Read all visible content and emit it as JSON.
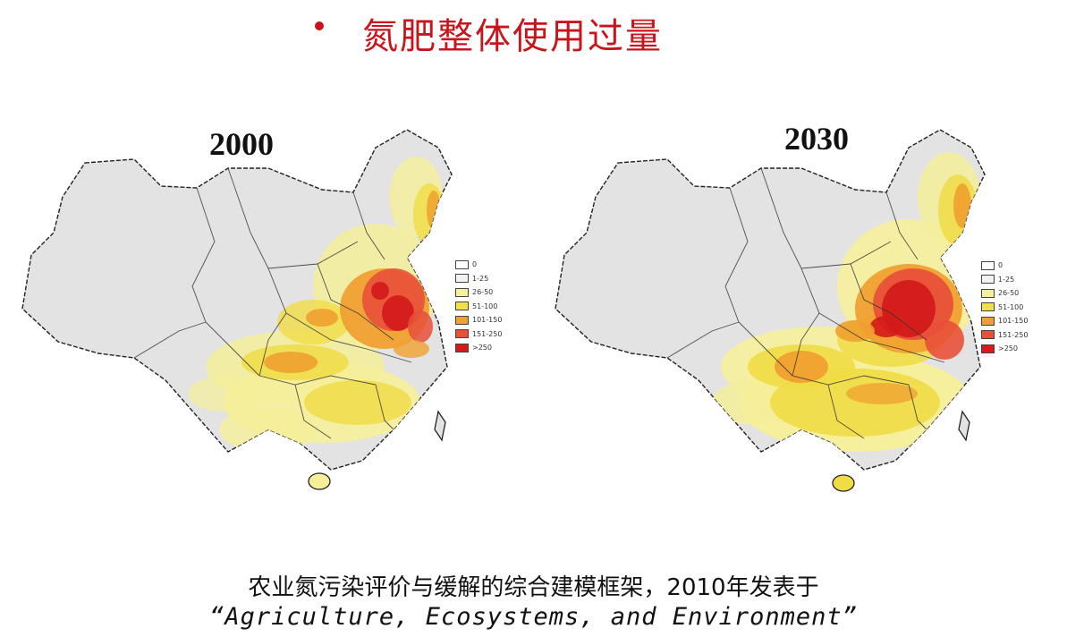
{
  "slide": {
    "title": "氮肥整体使用过量",
    "caption_line1": "农业氮污染评价与缓解的综合建模框架，2010年发表于",
    "caption_line2": "“Agriculture, Ecosystems, and Environment”"
  },
  "maps": [
    {
      "year": "2000",
      "legend": [
        {
          "label": "0",
          "color": "#ffffff"
        },
        {
          "label": "1-25",
          "color": "#f2f2f2"
        },
        {
          "label": "26-50",
          "color": "#f5f0a0"
        },
        {
          "label": "51-100",
          "color": "#f2e04a"
        },
        {
          "label": "101-150",
          "color": "#f0a030"
        },
        {
          "label": "151-250",
          "color": "#e8503a"
        },
        {
          "label": ">250",
          "color": "#d41a1a"
        }
      ]
    },
    {
      "year": "2030",
      "legend": [
        {
          "label": "0",
          "color": "#ffffff"
        },
        {
          "label": "1-25",
          "color": "#f2f2f2"
        },
        {
          "label": "26-50",
          "color": "#f5f0a0"
        },
        {
          "label": "51-100",
          "color": "#f2e04a"
        },
        {
          "label": "101-150",
          "color": "#f0a030"
        },
        {
          "label": "151-250",
          "color": "#e8503a"
        },
        {
          "label": ">250",
          "color": "#d41a1a"
        }
      ]
    }
  ],
  "colors": {
    "title_red": "#c8141b",
    "base_gray": "#e2e2e2",
    "border": "#222222"
  }
}
